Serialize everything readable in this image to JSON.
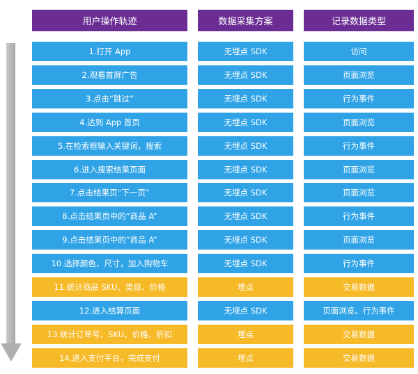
{
  "headers": [
    "用户操作轨迹",
    "数据采集方案",
    "记录数据类型"
  ],
  "colors": {
    "header": "#6b2d93",
    "blue": "#2fa3e6",
    "yellow": "#f6b928",
    "arrow": "#b0b0b0"
  },
  "rows": [
    {
      "action": "1.打开 App",
      "method": "无埋点 SDK",
      "type": "访问",
      "kind": "blue"
    },
    {
      "action": "2.观看首屏广告",
      "method": "无埋点 SDK",
      "type": "页面浏览",
      "kind": "blue"
    },
    {
      "action": "3.点击“跳过”",
      "method": "无埋点 SDK",
      "type": "行为事件",
      "kind": "blue"
    },
    {
      "action": "4.达到 App 首页",
      "method": "无埋点 SDK",
      "type": "页面浏览",
      "kind": "blue"
    },
    {
      "action": "5.在检索框输入关键词，搜索",
      "method": "无埋点 SDK",
      "type": "行为事件",
      "kind": "blue"
    },
    {
      "action": "6.进入搜索结果页面",
      "method": "无埋点 SDK",
      "type": "页面浏览",
      "kind": "blue"
    },
    {
      "action": "7.点击结果页“下一页”",
      "method": "无埋点 SDK",
      "type": "页面浏览",
      "kind": "blue"
    },
    {
      "action": "8.点击结果页中的“商品 A”",
      "method": "无埋点 SDK",
      "type": "行为事件",
      "kind": "blue"
    },
    {
      "action": "9.点击结果页中的“商品 A”",
      "method": "无埋点 SDK",
      "type": "页面浏览",
      "kind": "blue"
    },
    {
      "action": "10.选择颜色、尺寸，加入购物车",
      "method": "无埋点 SDK",
      "type": "行为事件",
      "kind": "blue"
    },
    {
      "action": "11.统计商品 SKU、类目、价格",
      "method": "埋点",
      "type": "交易数据",
      "kind": "yellow"
    },
    {
      "action": "12.进入结算页面",
      "method": "无埋点 SDK",
      "type": "页面浏览、行为事件",
      "kind": "blue"
    },
    {
      "action": "13.统计订单号、SKU、价格、折扣",
      "method": "埋点",
      "type": "交易数据",
      "kind": "yellow"
    },
    {
      "action": "14.进入支付平台，完成支付",
      "method": "埋点",
      "type": "交易数据",
      "kind": "yellow"
    }
  ]
}
